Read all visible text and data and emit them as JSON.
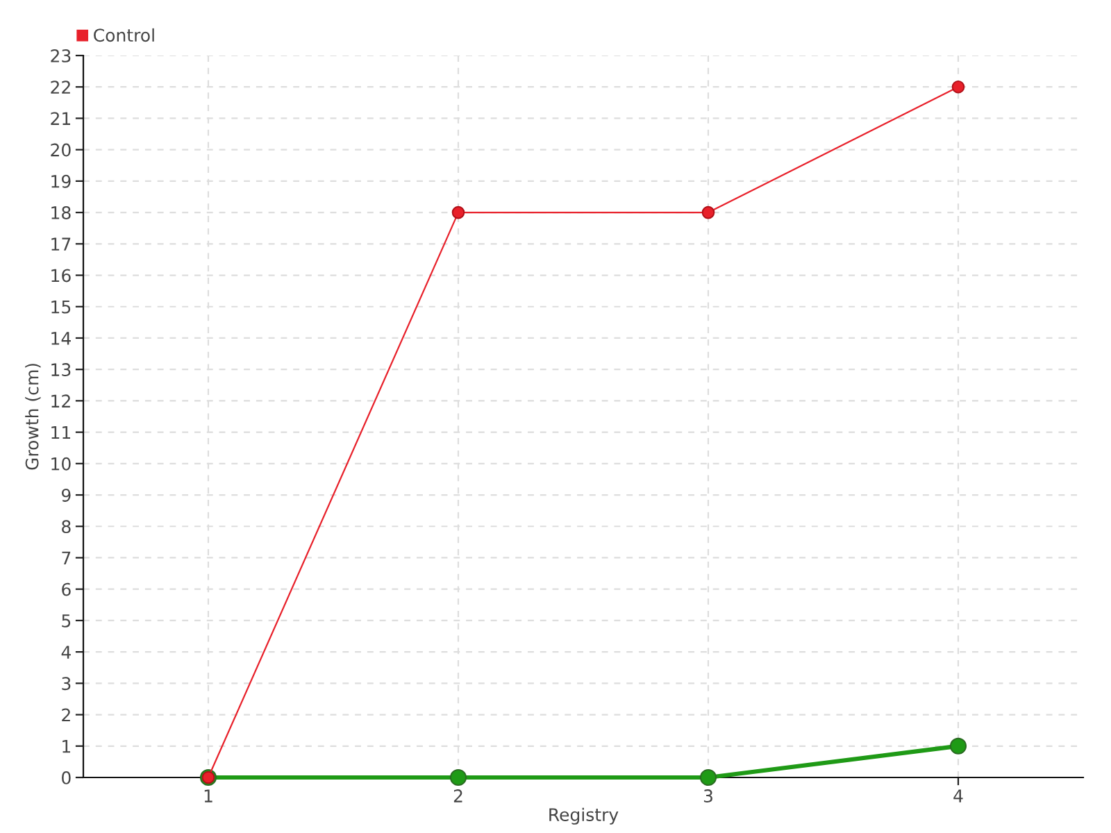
{
  "chart_data": {
    "type": "line",
    "xlabel": "Registry",
    "ylabel": "Growth (cm)",
    "x": [
      1,
      2,
      3,
      4
    ],
    "xlim": [
      0.5,
      4.5
    ],
    "xticks": [
      1,
      2,
      3,
      4
    ],
    "ylim": [
      0,
      23
    ],
    "yticks": [
      0,
      1,
      2,
      3,
      4,
      5,
      6,
      7,
      8,
      9,
      10,
      11,
      12,
      13,
      14,
      15,
      16,
      17,
      18,
      19,
      20,
      21,
      22,
      23
    ],
    "series": [
      {
        "color": "#1f9a16",
        "values": [
          0,
          0,
          0,
          1
        ]
      },
      {
        "name": "Control",
        "color": "#e8202a",
        "values": [
          0,
          18,
          18,
          22
        ]
      }
    ],
    "grid": true,
    "legend": "top left",
    "marker": "circle",
    "line_style": "solid"
  }
}
